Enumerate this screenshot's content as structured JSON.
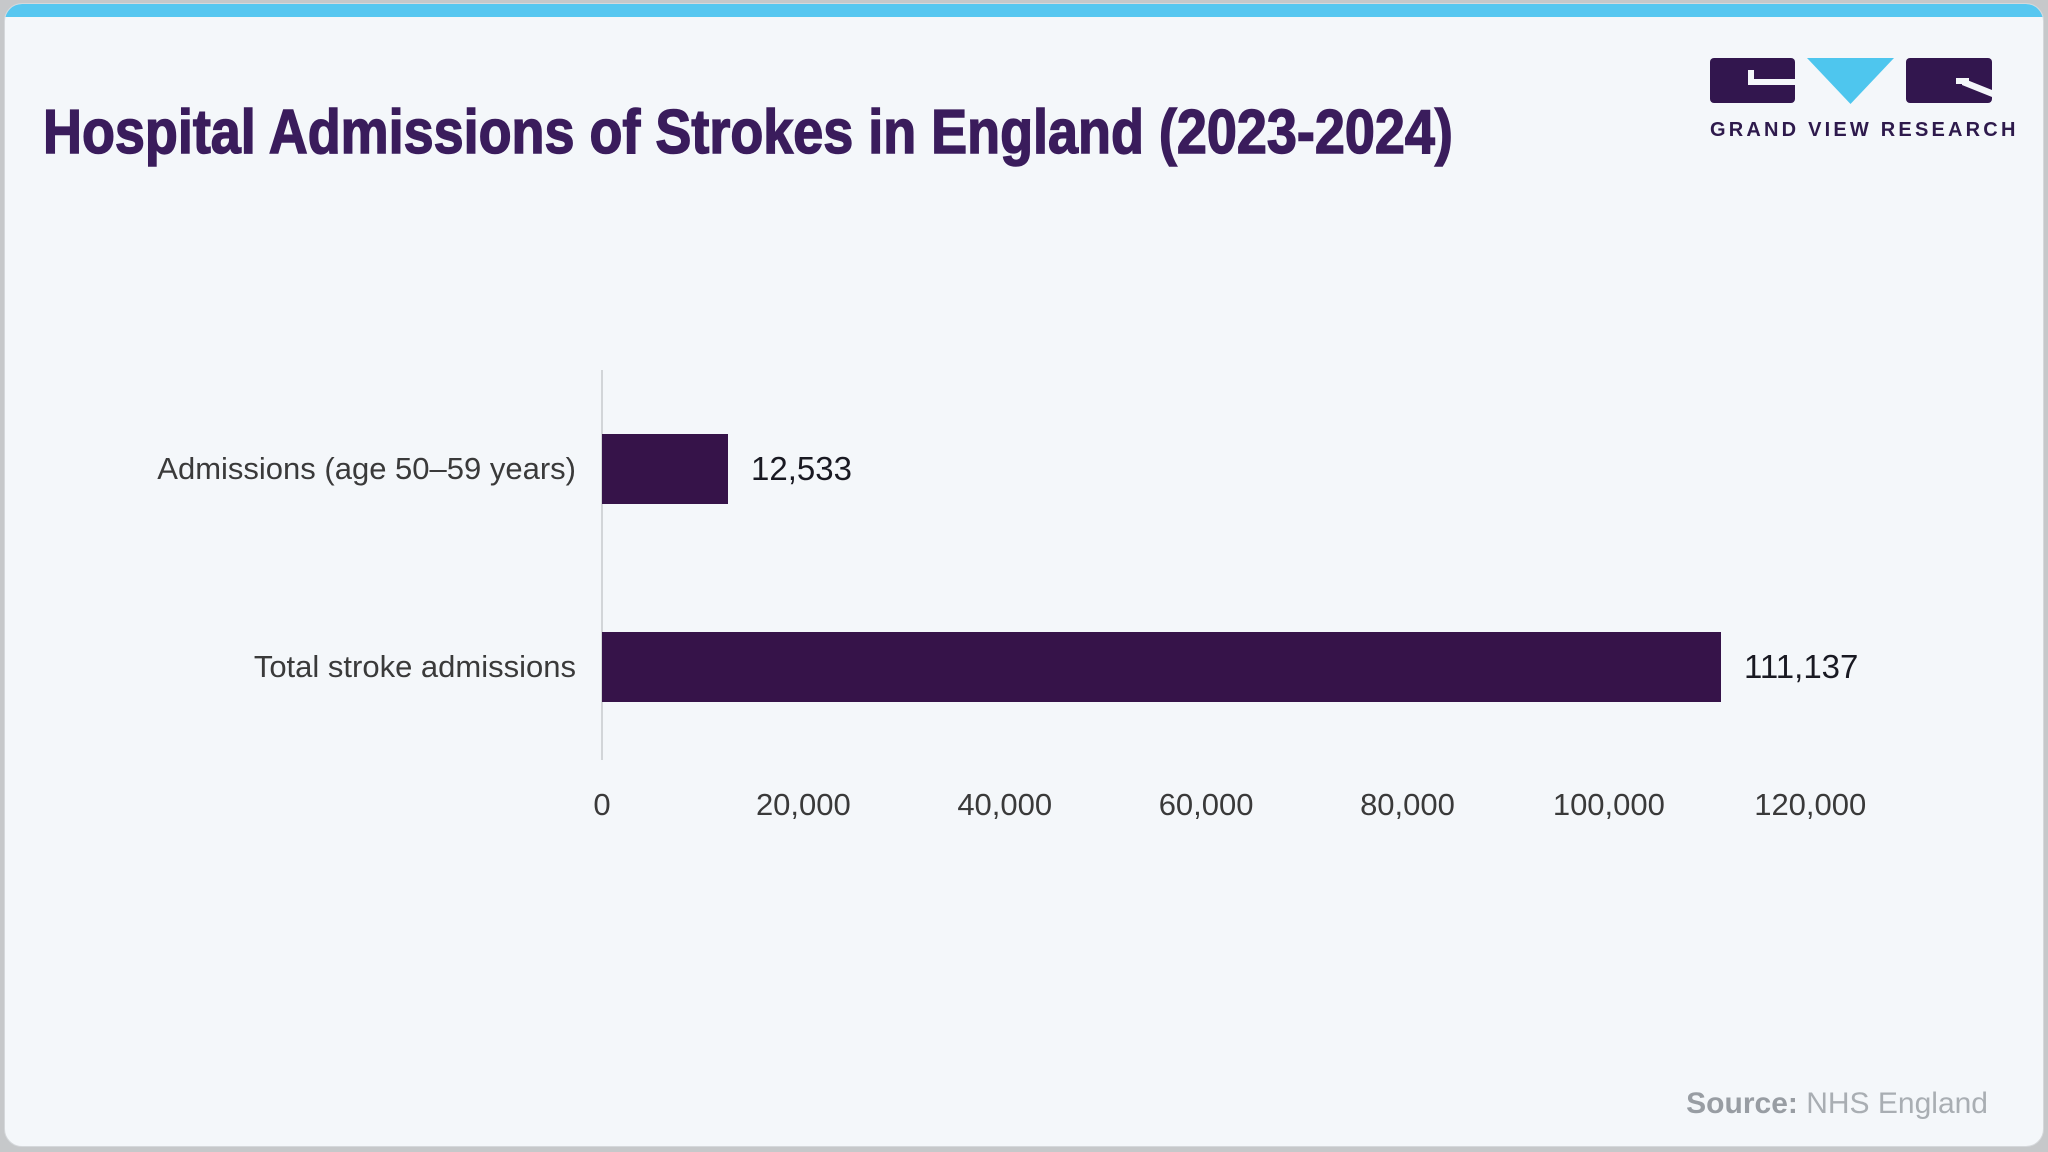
{
  "header": {
    "title": "Hospital Admissions of Strokes in England (2023-2024)"
  },
  "logo": {
    "brand": "GRAND VIEW RESEARCH",
    "mark_purple": "#32164e",
    "mark_blue": "#4ec6ee"
  },
  "chart_data": {
    "type": "bar",
    "orientation": "horizontal",
    "title": "Hospital Admissions of Strokes in England (2023-2024)",
    "categories": [
      "Admissions (age 50–59 years)",
      "Total stroke admissions"
    ],
    "values": [
      12533,
      111137
    ],
    "value_labels": [
      "12,533",
      "111,137"
    ],
    "xlabel": "",
    "ylabel": "",
    "xlim": [
      0,
      120000
    ],
    "x_ticks": [
      0,
      20000,
      40000,
      60000,
      80000,
      100000,
      120000
    ],
    "x_tick_labels": [
      "0",
      "20,000",
      "40,000",
      "60,000",
      "80,000",
      "100,000",
      "120,000"
    ],
    "grid": false,
    "legend": false,
    "bar_color": "#361349"
  },
  "footer": {
    "source_label": "Source:",
    "source_value": "NHS England"
  },
  "colors": {
    "accent_blue": "#57c7f0",
    "title_purple": "#3a1c5c",
    "brand_purple": "#2e1a4c",
    "bar_purple": "#361349",
    "card_bg": "#f4f7fa",
    "page_bg": "#c6c8ca"
  }
}
